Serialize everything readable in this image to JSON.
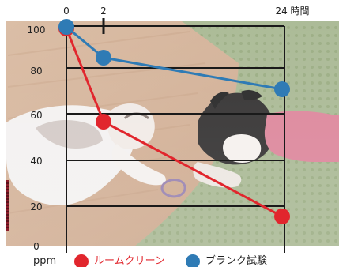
{
  "chart_data": {
    "type": "line",
    "background_image": "photo of a cat and a french bulldog lying on a wooden floor and green rug",
    "x_ticks": [
      "0",
      "2",
      "24 時間"
    ],
    "y_ticks": [
      "100",
      "80",
      "60",
      "40",
      "20",
      "0"
    ],
    "ylim": [
      0,
      100
    ],
    "y_unit": "ppm",
    "legend_position": "bottom",
    "grid": "horizontal",
    "series": [
      {
        "name": "ルームクリーン",
        "color": "#e1262d",
        "x": [
          0,
          2,
          24
        ],
        "values": [
          100,
          57,
          13
        ]
      },
      {
        "name": "ブランク試験",
        "color": "#2f7bb5",
        "x": [
          0,
          2,
          24
        ],
        "values": [
          100,
          86,
          71
        ]
      }
    ]
  },
  "colors": {
    "red": "#e1262d",
    "blue": "#2f7bb5",
    "grid": "#1a1a1a"
  }
}
